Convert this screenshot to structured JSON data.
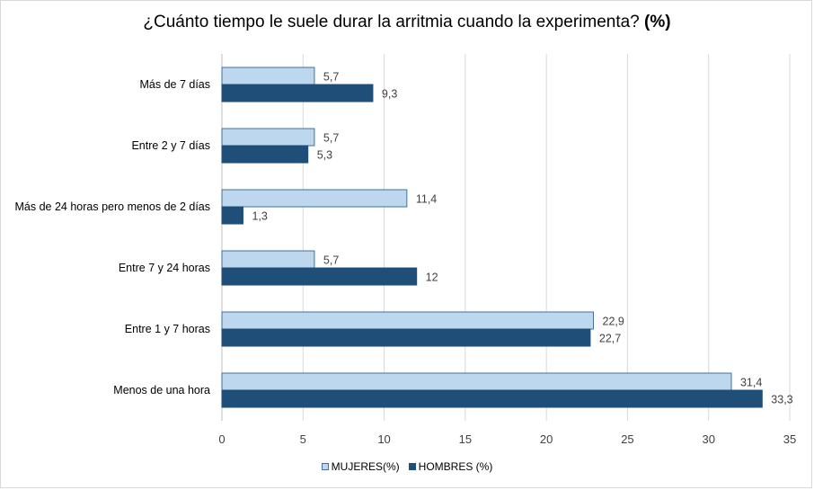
{
  "chart_data": {
    "type": "bar",
    "orientation": "horizontal",
    "title": "¿Cuánto tiempo le suele durar la arritmia cuando la experimenta?",
    "title_suffix": "(%)",
    "categories": [
      "Más de 7 días",
      "Entre 2 y 7 días",
      "Más de 24 horas pero menos de 2 días",
      "Entre 7 y 24 horas",
      "Entre 1 y 7 horas",
      "Menos de una hora"
    ],
    "series": [
      {
        "name": "MUJERES(%)",
        "color": "#bdd7ee",
        "border": "#41719c",
        "values": [
          5.7,
          5.7,
          11.4,
          5.7,
          22.9,
          31.4
        ],
        "labels": [
          "5,7",
          "5,7",
          "11,4",
          "5,7",
          "22,9",
          "31,4"
        ]
      },
      {
        "name": "HOMBRES (%)",
        "color": "#1f4e79",
        "border": "#1f4e79",
        "values": [
          9.3,
          5.3,
          1.3,
          12,
          22.7,
          33.3
        ],
        "labels": [
          "9,3",
          "5,3",
          "1,3",
          "12",
          "22,7",
          "33,3"
        ]
      }
    ],
    "xlim": [
      0,
      35
    ],
    "xticks": [
      0,
      5,
      10,
      15,
      20,
      25,
      30,
      35
    ],
    "grid": true,
    "legend_position": "bottom"
  }
}
